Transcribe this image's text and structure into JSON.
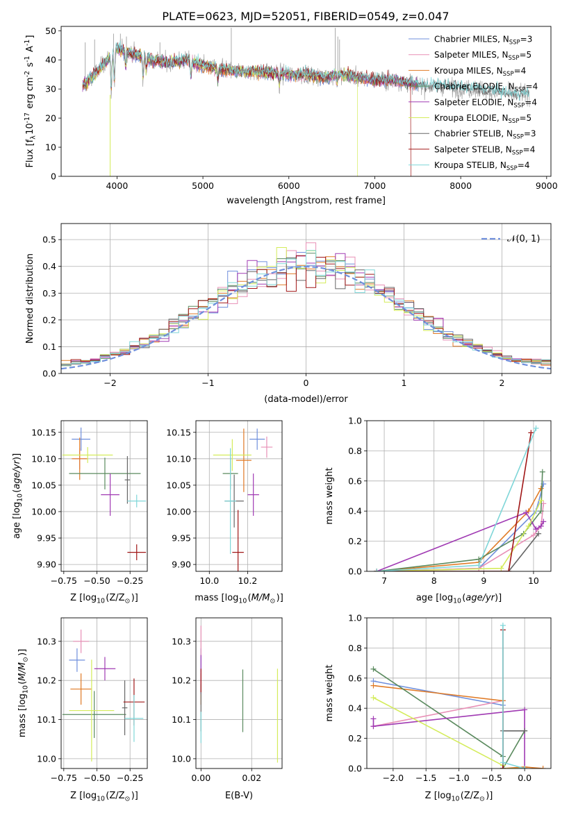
{
  "title": "PLATE=0623, MJD=52051, FIBERID=0549, z=0.047",
  "colors": {
    "Chabrier MILES": "#6f8fdc",
    "Salpeter MILES": "#e88fb6",
    "Kroupa MILES": "#e07a25",
    "Chabrier ELODIE": "#5a8a5e",
    "Salpeter ELODIE": "#a03ab3",
    "Kroupa ELODIE": "#d4ec5a",
    "Chabrier STELIB": "#666666",
    "Salpeter STELIB": "#a01616",
    "Kroupa STELIB": "#7fd6d8"
  },
  "chart_data": [
    {
      "id": "spectrum",
      "type": "line",
      "xlabel": "wavelength [Angstrom, rest frame]",
      "ylabel": "Flux [f$_{\\lambda}$10$^{-17}$ erg cm$^{-2}$ s$^{-1}$ A$^{-1}$]",
      "xlim": [
        3350,
        9050
      ],
      "ylim": [
        0,
        51.5
      ],
      "xticks": [
        4000,
        5000,
        6000,
        7000,
        8000,
        9000
      ],
      "yticks": [
        0,
        10,
        20,
        30,
        40,
        50
      ],
      "legend_position": "top-right",
      "series": [
        {
          "name": "Chabrier MILES",
          "n": "3"
        },
        {
          "name": "Salpeter MILES",
          "n": "5"
        },
        {
          "name": "Kroupa MILES",
          "n": "4"
        },
        {
          "name": "Chabrier ELODIE",
          "n": "4"
        },
        {
          "name": "Salpeter ELODIE",
          "n": "4"
        },
        {
          "name": "Kroupa ELODIE",
          "n": "5"
        },
        {
          "name": "Chabrier STELIB",
          "n": "3"
        },
        {
          "name": "Salpeter STELIB",
          "n": "4"
        },
        {
          "name": "Kroupa STELIB",
          "n": "4"
        }
      ],
      "data_wavelength_range": [
        3600,
        8800
      ],
      "model_cutoffs": {
        "Kroupa ELODIE": 6800,
        "Salpeter STELIB": 7420
      },
      "continuum": [
        [
          3600,
          31
        ],
        [
          3800,
          37
        ],
        [
          4000,
          44
        ],
        [
          4200,
          42
        ],
        [
          4400,
          40
        ],
        [
          4600,
          39
        ],
        [
          4800,
          40
        ],
        [
          5000,
          38
        ],
        [
          5200,
          37
        ],
        [
          5400,
          36
        ],
        [
          5600,
          36
        ],
        [
          5800,
          35.5
        ],
        [
          6000,
          35
        ],
        [
          6200,
          35
        ],
        [
          6400,
          34
        ],
        [
          6600,
          35
        ],
        [
          6800,
          34
        ],
        [
          7000,
          33
        ],
        [
          7200,
          33
        ],
        [
          7400,
          32
        ],
        [
          7600,
          31
        ],
        [
          7800,
          31
        ],
        [
          8000,
          30
        ],
        [
          8200,
          30
        ],
        [
          8400,
          29
        ],
        [
          8600,
          28
        ],
        [
          8800,
          28
        ]
      ]
    },
    {
      "id": "residuals",
      "type": "line",
      "xlabel": "(data-model)/error",
      "ylabel": "Normed distribution",
      "xlim": [
        -2.5,
        2.5
      ],
      "ylim": [
        0,
        0.56
      ],
      "xticks": [
        -2,
        -1,
        0,
        1,
        2
      ],
      "yticks": [
        0.0,
        0.1,
        0.2,
        0.3,
        0.4,
        0.5
      ],
      "legend": "$\\mathcal{N}(0,1)$",
      "legend_position": "top-right",
      "grid": true
    },
    {
      "id": "age-vs-Z",
      "type": "scatter",
      "xlabel": "Z [log$_{10}$(Z/Z$_\\odot$)]",
      "ylabel": "age  [log$_{10}$($age/yr$)]",
      "xlim": [
        -0.77,
        -0.12
      ],
      "ylim": [
        9.887,
        10.172
      ],
      "xticks": [
        -0.75,
        -0.5,
        -0.25
      ],
      "yticks": [
        9.9,
        9.95,
        10.0,
        10.05,
        10.1,
        10.15
      ],
      "grid": true,
      "points": [
        {
          "series": "Chabrier MILES",
          "x": -0.62,
          "xerr": 0.07,
          "y": 10.137,
          "yerr": 0.022
        },
        {
          "series": "Salpeter MILES",
          "x": -0.63,
          "xerr": 0.05,
          "y": 10.1,
          "yerr": 0.02
        },
        {
          "series": "Kroupa MILES",
          "x": -0.63,
          "xerr": 0.06,
          "y": 10.1,
          "yerr": 0.04
        },
        {
          "series": "Chabrier ELODIE",
          "x": -0.44,
          "xerr": 0.27,
          "y": 10.072,
          "yerr": 0.03
        },
        {
          "series": "Salpeter ELODIE",
          "x": -0.4,
          "xerr": 0.07,
          "y": 10.032,
          "yerr": 0.04
        },
        {
          "series": "Kroupa ELODIE",
          "x": -0.57,
          "xerr": 0.19,
          "y": 10.107,
          "yerr": 0.015
        },
        {
          "series": "Chabrier STELIB",
          "x": -0.27,
          "xerr": 0.02,
          "y": 10.06,
          "yerr": 0.045
        },
        {
          "series": "Salpeter STELIB",
          "x": -0.2,
          "xerr": 0.07,
          "y": 9.923,
          "yerr": 0.015
        },
        {
          "series": "Kroupa STELIB",
          "x": -0.2,
          "xerr": 0.07,
          "y": 10.02,
          "yerr": 0.012
        }
      ]
    },
    {
      "id": "age-vs-mass",
      "type": "scatter",
      "xlabel": "mass [log$_{10}$($M/M_\\odot$)]",
      "xlim": [
        9.93,
        10.38
      ],
      "ylim": [
        9.887,
        10.172
      ],
      "xticks": [
        10.0,
        10.2
      ],
      "yticks": [
        9.9,
        9.95,
        10.0,
        10.05,
        10.1,
        10.15
      ],
      "grid": true,
      "points": [
        {
          "series": "Chabrier MILES",
          "x": 10.25,
          "xerr": 0.04,
          "y": 10.137,
          "yerr": 0.02
        },
        {
          "series": "Salpeter MILES",
          "x": 10.3,
          "xerr": 0.03,
          "y": 10.122,
          "yerr": 0.02
        },
        {
          "series": "Kroupa MILES",
          "x": 10.18,
          "xerr": 0.04,
          "y": 10.097,
          "yerr": 0.06
        },
        {
          "series": "Chabrier ELODIE",
          "x": 10.11,
          "xerr": 0.04,
          "y": 10.072,
          "yerr": 0.03
        },
        {
          "series": "Salpeter ELODIE",
          "x": 10.23,
          "xerr": 0.03,
          "y": 10.032,
          "yerr": 0.04
        },
        {
          "series": "Kroupa ELODIE",
          "x": 10.12,
          "xerr": 0.1,
          "y": 10.107,
          "yerr": 0.03
        },
        {
          "series": "Chabrier STELIB",
          "x": 10.13,
          "xerr": 0.05,
          "y": 10.02,
          "yerr": 0.05
        },
        {
          "series": "Salpeter STELIB",
          "x": 10.15,
          "xerr": 0.03,
          "y": 9.923,
          "yerr": 0.08
        },
        {
          "series": "Kroupa STELIB",
          "x": 10.11,
          "xerr": 0.03,
          "y": 10.02,
          "yerr": 0.1
        }
      ]
    },
    {
      "id": "weight-vs-age",
      "type": "line",
      "xlabel": "age  [log$_{10}$($age/yr$)]",
      "ylabel": "mass weight",
      "xlim": [
        6.65,
        10.35
      ],
      "ylim": [
        0,
        1
      ],
      "xticks": [
        7,
        8,
        9,
        10
      ],
      "yticks": [
        0.0,
        0.2,
        0.4,
        0.6,
        0.8,
        1.0
      ],
      "grid": true,
      "series": [
        {
          "name": "Chabrier MILES",
          "x": [
            6.85,
            8.9,
            10.05,
            10.2
          ],
          "y": [
            0.0,
            0.02,
            0.4,
            0.58
          ]
        },
        {
          "name": "Salpeter MILES",
          "x": [
            6.85,
            8.9,
            10.0,
            10.15,
            10.2
          ],
          "y": [
            0.0,
            0.02,
            0.24,
            0.3,
            0.45
          ]
        },
        {
          "name": "Kroupa MILES",
          "x": [
            6.85,
            8.9,
            9.9,
            10.15
          ],
          "y": [
            0.0,
            0.06,
            0.4,
            0.55
          ]
        },
        {
          "name": "Chabrier ELODIE",
          "x": [
            6.85,
            8.9,
            9.8,
            10.15,
            10.18
          ],
          "y": [
            0.0,
            0.08,
            0.25,
            0.4,
            0.66
          ]
        },
        {
          "name": "Salpeter ELODIE",
          "x": [
            6.85,
            9.85,
            10.05,
            10.15,
            10.2
          ],
          "y": [
            0.0,
            0.39,
            0.28,
            0.3,
            0.33
          ]
        },
        {
          "name": "Kroupa ELODIE",
          "x": [
            6.85,
            9.35,
            9.9,
            10.15
          ],
          "y": [
            0.0,
            0.02,
            0.3,
            0.47
          ]
        },
        {
          "name": "Chabrier STELIB",
          "x": [
            6.85,
            9.5,
            10.1
          ],
          "y": [
            0.0,
            0.0,
            0.25
          ]
        },
        {
          "name": "Salpeter STELIB",
          "x": [
            6.85,
            9.5,
            9.95
          ],
          "y": [
            0.0,
            0.0,
            0.92
          ]
        },
        {
          "name": "Kroupa STELIB",
          "x": [
            6.85,
            8.9,
            10.05
          ],
          "y": [
            0.0,
            0.04,
            0.95
          ]
        }
      ]
    },
    {
      "id": "mass-vs-Z",
      "type": "scatter",
      "xlabel": "Z [log$_{10}$(Z/Z$_\\odot$)]",
      "ylabel": "mass [log$_{10}$($M/M_\\odot$)]",
      "xlim": [
        -0.77,
        -0.12
      ],
      "ylim": [
        9.975,
        10.36
      ],
      "xticks": [
        -0.75,
        -0.5,
        -0.25
      ],
      "yticks": [
        10.0,
        10.1,
        10.2,
        10.3
      ],
      "grid": true,
      "points": [
        {
          "series": "Chabrier MILES",
          "x": -0.65,
          "xerr": 0.06,
          "y": 10.252,
          "yerr": 0.03
        },
        {
          "series": "Salpeter MILES",
          "x": -0.62,
          "xerr": 0.06,
          "y": 10.3,
          "yerr": 0.03
        },
        {
          "series": "Kroupa MILES",
          "x": -0.62,
          "xerr": 0.08,
          "y": 10.178,
          "yerr": 0.04
        },
        {
          "series": "Chabrier ELODIE",
          "x": -0.52,
          "xerr": 0.24,
          "y": 10.113,
          "yerr": 0.06
        },
        {
          "series": "Salpeter ELODIE",
          "x": -0.44,
          "xerr": 0.08,
          "y": 10.23,
          "yerr": 0.03
        },
        {
          "series": "Kroupa ELODIE",
          "x": -0.54,
          "xerr": 0.17,
          "y": 10.123,
          "yerr": 0.13
        },
        {
          "series": "Chabrier STELIB",
          "x": -0.29,
          "xerr": 0.02,
          "y": 10.13,
          "yerr": 0.07
        },
        {
          "series": "Salpeter STELIB",
          "x": -0.22,
          "xerr": 0.08,
          "y": 10.145,
          "yerr": 0.06
        },
        {
          "series": "Kroupa STELIB",
          "x": -0.22,
          "xerr": 0.07,
          "y": 10.103,
          "yerr": 0.06
        }
      ]
    },
    {
      "id": "mass-vs-ebv",
      "type": "scatter",
      "xlabel": "E(B-V)",
      "xlim": [
        -0.002,
        0.032
      ],
      "ylim": [
        9.975,
        10.36
      ],
      "xticks": [
        0.0,
        0.02
      ],
      "yticks": [
        10.0,
        10.1,
        10.2,
        10.3
      ],
      "grid": true,
      "points": [
        {
          "series": "Chabrier MILES",
          "x": 0.0,
          "xerr": 0,
          "y": 10.252,
          "yerr": 0.03
        },
        {
          "series": "Salpeter MILES",
          "x": 0.0,
          "xerr": 0,
          "y": 10.3,
          "yerr": 0.04
        },
        {
          "series": "Kroupa MILES",
          "x": 0.0,
          "xerr": 0,
          "y": 10.178,
          "yerr": 0.04
        },
        {
          "series": "Chabrier ELODIE",
          "x": 0.0165,
          "xerr": 0,
          "y": 10.148,
          "yerr": 0.08
        },
        {
          "series": "Salpeter ELODIE",
          "x": 0.0,
          "xerr": 0,
          "y": 10.215,
          "yerr": 0.05
        },
        {
          "series": "Kroupa ELODIE",
          "x": 0.0302,
          "xerr": 0,
          "y": 10.11,
          "yerr": 0.12
        },
        {
          "series": "Chabrier STELIB",
          "x": 0.0,
          "xerr": 0,
          "y": 10.13,
          "yerr": 0.06
        },
        {
          "series": "Salpeter STELIB",
          "x": 0.0,
          "xerr": 0,
          "y": 10.2,
          "yerr": 0.03
        },
        {
          "series": "Kroupa STELIB",
          "x": 0.0,
          "xerr": 0,
          "y": 10.08,
          "yerr": 0.04
        }
      ]
    },
    {
      "id": "weight-vs-Z",
      "type": "line",
      "xlabel": "Z [log$_{10}$(Z/Z$_\\odot$)]",
      "ylabel": "mass weight",
      "xlim": [
        -2.4,
        0.4
      ],
      "ylim": [
        0,
        1
      ],
      "xticks": [
        -2.0,
        -1.5,
        -1.0,
        -0.5,
        0.0
      ],
      "yticks": [
        0.0,
        0.2,
        0.4,
        0.6,
        0.8,
        1.0
      ],
      "grid": true,
      "series": [
        {
          "name": "Chabrier MILES",
          "x": [
            -2.3,
            -0.33,
            -0.33,
            0.0
          ],
          "y": [
            0.58,
            0.42,
            0.0,
            0.0
          ]
        },
        {
          "name": "Salpeter MILES",
          "x": [
            -2.3,
            -0.33,
            -0.33,
            0.0
          ],
          "y": [
            0.28,
            0.45,
            0.0,
            0.0
          ]
        },
        {
          "name": "Kroupa MILES",
          "x": [
            -2.3,
            -0.33,
            -0.33,
            0.0,
            0.28
          ],
          "y": [
            0.55,
            0.45,
            0.0,
            0.01,
            0.0
          ]
        },
        {
          "name": "Chabrier ELODIE",
          "x": [
            -2.3,
            -0.33,
            -0.33,
            0.0
          ],
          "y": [
            0.66,
            0.08,
            0.0,
            0.25
          ]
        },
        {
          "name": "Salpeter ELODIE",
          "x": [
            -2.3,
            -2.3,
            0.0,
            0.0
          ],
          "y": [
            0.33,
            0.28,
            0.39,
            0.0
          ]
        },
        {
          "name": "Kroupa ELODIE",
          "x": [
            -2.3,
            -0.33,
            -0.33,
            0.0
          ],
          "y": [
            0.47,
            0.02,
            0.0,
            0.0
          ]
        },
        {
          "name": "Chabrier STELIB",
          "x": [
            -0.33,
            -0.33,
            0.0
          ],
          "y": [
            0.0,
            0.25,
            0.25
          ]
        },
        {
          "name": "Salpeter STELIB",
          "x": [
            -0.33,
            -0.33
          ],
          "y": [
            0.0,
            0.92
          ]
        },
        {
          "name": "Kroupa STELIB",
          "x": [
            -0.33,
            -0.33,
            0.0
          ],
          "y": [
            0.95,
            0.04,
            0.0
          ]
        }
      ]
    }
  ]
}
